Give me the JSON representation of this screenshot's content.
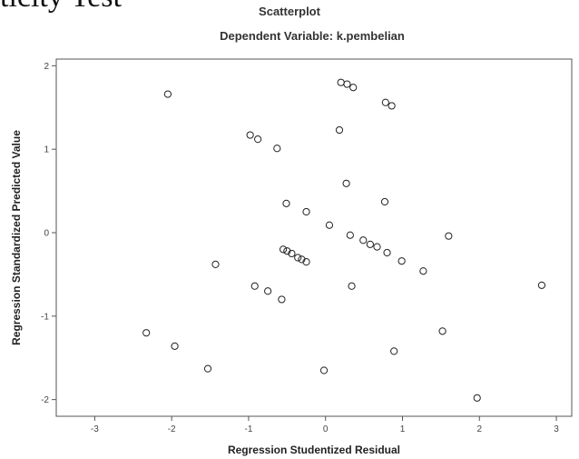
{
  "top_fragment": "ticity Test",
  "chart_data": {
    "type": "scatter",
    "title": "Scatterplot",
    "subtitle": "Dependent Variable: k.pembelian",
    "xlabel": "Regression Studentized Residual",
    "ylabel": "Regression Standardized Predicted Value",
    "xlim": [
      -3.0,
      3.0
    ],
    "ylim": [
      -2.0,
      2.0
    ],
    "x_ticks": [
      -3,
      -2,
      -1,
      0,
      1,
      2,
      3
    ],
    "y_ticks": [
      2,
      1,
      0,
      -1,
      -2
    ],
    "x_tick_labels": [
      "-3",
      "-2",
      "-1",
      "0",
      "1",
      "2",
      "3"
    ],
    "y_tick_labels": [
      "2",
      "1",
      "0",
      "-1",
      "-2"
    ],
    "marker": "open-circle",
    "grid": false,
    "points": [
      {
        "x": -2.05,
        "y": 1.66
      },
      {
        "x": 0.2,
        "y": 1.8
      },
      {
        "x": 0.28,
        "y": 1.78
      },
      {
        "x": 0.36,
        "y": 1.74
      },
      {
        "x": 0.78,
        "y": 1.56
      },
      {
        "x": 0.86,
        "y": 1.52
      },
      {
        "x": 0.18,
        "y": 1.23
      },
      {
        "x": -0.98,
        "y": 1.17
      },
      {
        "x": -0.88,
        "y": 1.12
      },
      {
        "x": -0.63,
        "y": 1.01
      },
      {
        "x": 0.27,
        "y": 0.59
      },
      {
        "x": -0.51,
        "y": 0.35
      },
      {
        "x": 0.77,
        "y": 0.37
      },
      {
        "x": -0.25,
        "y": 0.25
      },
      {
        "x": 0.05,
        "y": 0.09
      },
      {
        "x": 0.32,
        "y": -0.03
      },
      {
        "x": 1.6,
        "y": -0.04
      },
      {
        "x": 0.49,
        "y": -0.09
      },
      {
        "x": 0.58,
        "y": -0.14
      },
      {
        "x": 0.67,
        "y": -0.17
      },
      {
        "x": 0.8,
        "y": -0.24
      },
      {
        "x": 0.99,
        "y": -0.34
      },
      {
        "x": 1.27,
        "y": -0.46
      },
      {
        "x": -0.55,
        "y": -0.2
      },
      {
        "x": -0.5,
        "y": -0.22
      },
      {
        "x": -0.44,
        "y": -0.25
      },
      {
        "x": -0.36,
        "y": -0.3
      },
      {
        "x": -0.31,
        "y": -0.32
      },
      {
        "x": -0.25,
        "y": -0.35
      },
      {
        "x": -1.43,
        "y": -0.38
      },
      {
        "x": -0.92,
        "y": -0.64
      },
      {
        "x": -0.75,
        "y": -0.7
      },
      {
        "x": -0.57,
        "y": -0.8
      },
      {
        "x": 0.34,
        "y": -0.64
      },
      {
        "x": 2.81,
        "y": -0.63
      },
      {
        "x": -2.33,
        "y": -1.2
      },
      {
        "x": -1.96,
        "y": -1.36
      },
      {
        "x": -1.53,
        "y": -1.63
      },
      {
        "x": -0.02,
        "y": -1.65
      },
      {
        "x": 0.89,
        "y": -1.42
      },
      {
        "x": 1.52,
        "y": -1.18
      },
      {
        "x": 1.97,
        "y": -1.98
      }
    ]
  }
}
